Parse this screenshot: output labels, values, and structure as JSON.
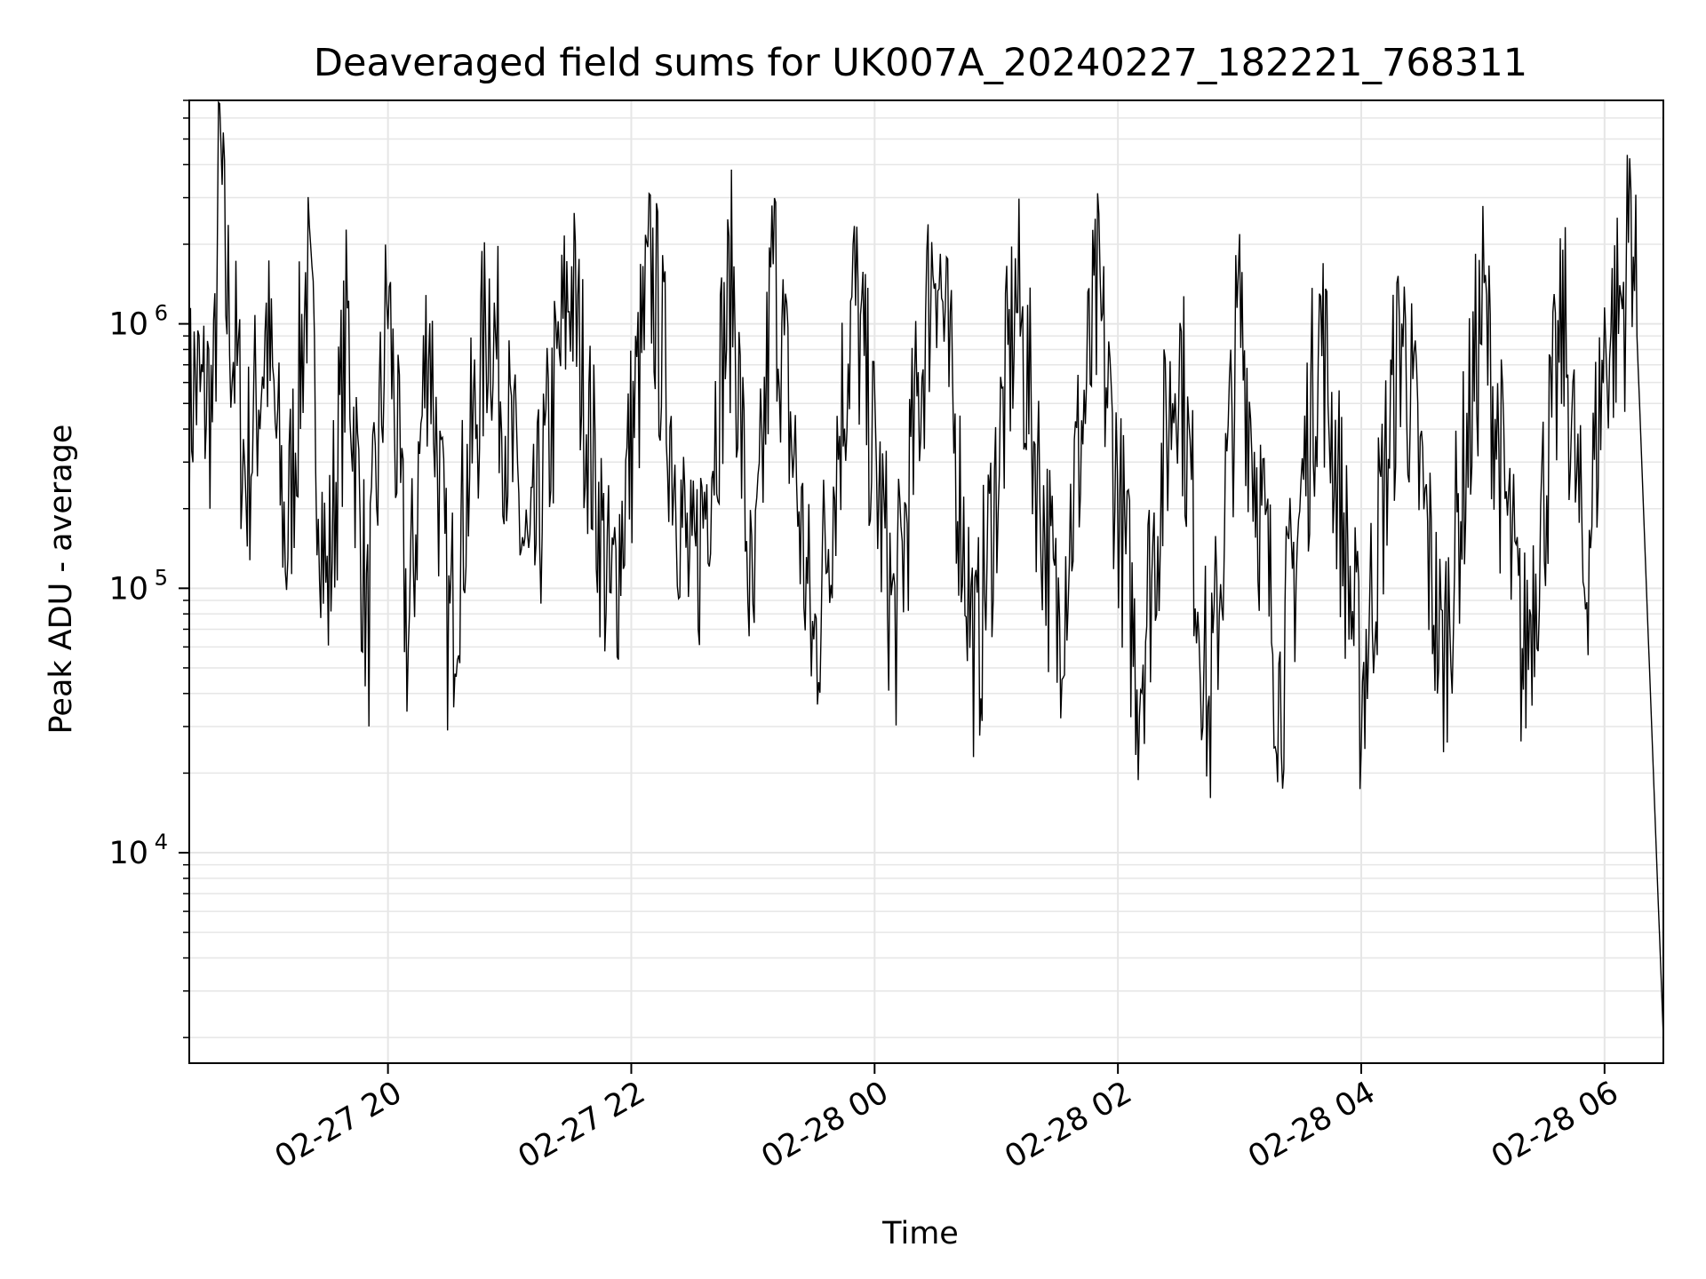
{
  "chart_data": {
    "type": "line",
    "title": "Deaveraged field sums for UK007A_20240227_182221_768311",
    "xlabel": "Time",
    "ylabel": "Peak ADU - average",
    "yscale": "log",
    "grid": true,
    "line_color": "#000000",
    "grid_color": "#e6e6e6",
    "x_tick_labels": [
      "02-27 20",
      "02-27 22",
      "02-28 00",
      "02-28 02",
      "02-28 04",
      "02-28 06"
    ],
    "x_tick_dates": [
      "2024-02-27T20:00",
      "2024-02-27T22:00",
      "2024-02-28T00:00",
      "2024-02-28T02:00",
      "2024-02-28T04:00",
      "2024-02-28T06:00"
    ],
    "xlim": [
      "2024-02-27T18:22",
      "2024-02-28T06:29"
    ],
    "y_ticks": [
      {
        "value": 10000,
        "base": "10",
        "exp": "4"
      },
      {
        "value": 100000,
        "base": "10",
        "exp": "5"
      },
      {
        "value": 1000000,
        "base": "10",
        "exp": "6"
      }
    ],
    "ylim": [
      1600,
      7000000
    ],
    "series": [
      {
        "points": [
          [
            "2024-02-27T18:22",
            450000
          ],
          [
            "2024-02-27T18:25",
            620000
          ],
          [
            "2024-02-27T18:28",
            480000
          ],
          [
            "2024-02-27T18:31",
            560000
          ],
          [
            "2024-02-27T18:34",
            430000
          ],
          [
            "2024-02-27T18:37",
            4600000
          ],
          [
            "2024-02-27T18:40",
            1400000
          ],
          [
            "2024-02-27T18:45",
            700000
          ],
          [
            "2024-02-27T18:50",
            250000
          ],
          [
            "2024-02-27T19:00",
            950000
          ],
          [
            "2024-02-27T19:10",
            140000
          ],
          [
            "2024-02-27T19:20",
            1500000
          ],
          [
            "2024-02-27T19:30",
            90000
          ],
          [
            "2024-02-27T19:40",
            1000000
          ],
          [
            "2024-02-27T19:50",
            65000
          ],
          [
            "2024-02-27T20:00",
            1300000
          ],
          [
            "2024-02-27T20:10",
            60000
          ],
          [
            "2024-02-27T20:20",
            1100000
          ],
          [
            "2024-02-27T20:30",
            65000
          ],
          [
            "2024-02-27T20:50",
            1200000
          ],
          [
            "2024-02-27T21:10",
            100000
          ],
          [
            "2024-02-27T21:30",
            1500000
          ],
          [
            "2024-02-27T21:50",
            80000
          ],
          [
            "2024-02-27T22:10",
            1600000
          ],
          [
            "2024-02-27T22:30",
            90000
          ],
          [
            "2024-02-27T22:50",
            1500000
          ],
          [
            "2024-02-27T23:00",
            60000
          ],
          [
            "2024-02-27T23:10",
            1800000
          ],
          [
            "2024-02-27T23:30",
            55000
          ],
          [
            "2024-02-27T23:50",
            1300000
          ],
          [
            "2024-02-28T00:10",
            70000
          ],
          [
            "2024-02-28T00:30",
            2200000
          ],
          [
            "2024-02-28T00:50",
            50000
          ],
          [
            "2024-02-28T01:10",
            1300000
          ],
          [
            "2024-02-28T01:30",
            70000
          ],
          [
            "2024-02-28T01:50",
            1200000
          ],
          [
            "2024-02-28T02:10",
            45000
          ],
          [
            "2024-02-28T02:30",
            900000
          ],
          [
            "2024-02-28T02:45",
            30000
          ],
          [
            "2024-02-28T03:00",
            1100000
          ],
          [
            "2024-02-28T03:20",
            40000
          ],
          [
            "2024-02-28T03:40",
            1000000
          ],
          [
            "2024-02-28T04:00",
            40000
          ],
          [
            "2024-02-28T04:20",
            1000000
          ],
          [
            "2024-02-28T04:40",
            50000
          ],
          [
            "2024-02-28T05:00",
            1200000
          ],
          [
            "2024-02-28T05:20",
            50000
          ],
          [
            "2024-02-28T05:40",
            1000000
          ],
          [
            "2024-02-28T05:50",
            100000
          ],
          [
            "2024-02-28T06:00",
            800000
          ],
          [
            "2024-02-28T06:10",
            1300000
          ],
          [
            "2024-02-28T06:13",
            3200000
          ],
          [
            "2024-02-28T06:16",
            900000
          ],
          [
            "2024-02-28T06:29",
            2000
          ]
        ]
      }
    ]
  }
}
